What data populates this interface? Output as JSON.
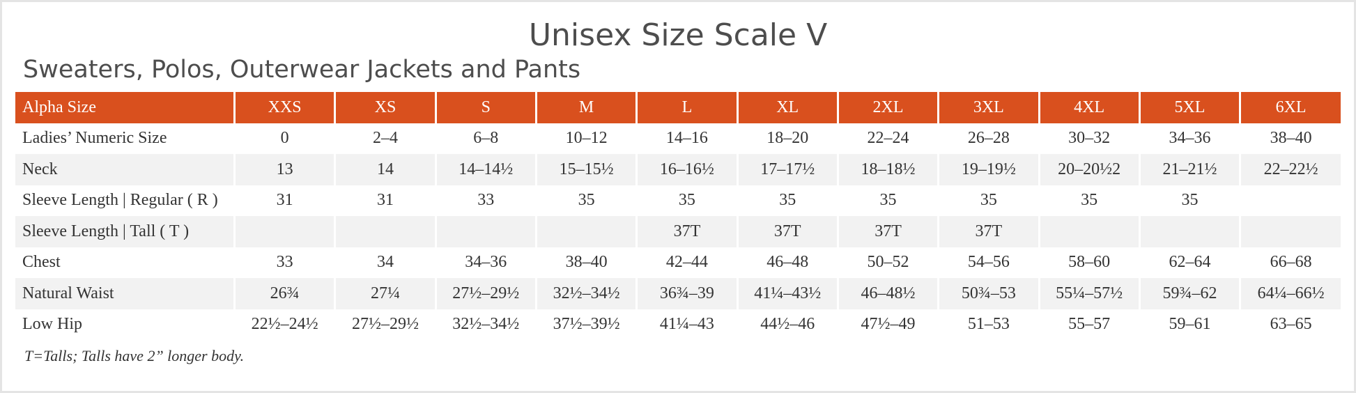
{
  "header": {
    "title": "Unisex Size Scale V",
    "subtitle": "Sweaters, Polos, Outerwear Jackets and Pants"
  },
  "table": {
    "columns": [
      "Alpha Size",
      "XXS",
      "XS",
      "S",
      "M",
      "L",
      "XL",
      "2XL",
      "3XL",
      "4XL",
      "5XL",
      "6XL"
    ],
    "rows": [
      [
        "Ladies’ Numeric Size",
        "0",
        "2–4",
        "6–8",
        "10–12",
        "14–16",
        "18–20",
        "22–24",
        "26–28",
        "30–32",
        "34–36",
        "38–40"
      ],
      [
        "Neck",
        "13",
        "14",
        "14–14½",
        "15–15½",
        "16–16½",
        "17–17½",
        "18–18½",
        "19–19½",
        "20–20½2",
        "21–21½",
        "22–22½"
      ],
      [
        "Sleeve Length | Regular ( R )",
        "31",
        "31",
        "33",
        "35",
        "35",
        "35",
        "35",
        "35",
        "35",
        "35",
        null
      ],
      [
        "Sleeve Length | Tall ( T )",
        null,
        null,
        null,
        null,
        "37T",
        "37T",
        "37T",
        "37T",
        null,
        null,
        null
      ],
      [
        "Chest",
        "33",
        "34",
        "34–36",
        "38–40",
        "42–44",
        "46–48",
        "50–52",
        "54–56",
        "58–60",
        "62–64",
        "66–68"
      ],
      [
        "Natural Waist",
        "26¾",
        "27¼",
        "27½–29½",
        "32½–34½",
        "36¾–39",
        "41¼–43½",
        "46–48½",
        "50¾–53",
        "55¼–57½",
        "59¾–62",
        "64¼–66½"
      ],
      [
        "Low Hip",
        "22½–24½",
        "27½–29½",
        "32½–34½",
        "37½–39½",
        "41¼–43",
        "44½–46",
        "47½–49",
        "51–53",
        "55–57",
        "59–61",
        "63–65"
      ]
    ]
  },
  "footnote": "T=Talls; Talls have 2” longer body."
}
